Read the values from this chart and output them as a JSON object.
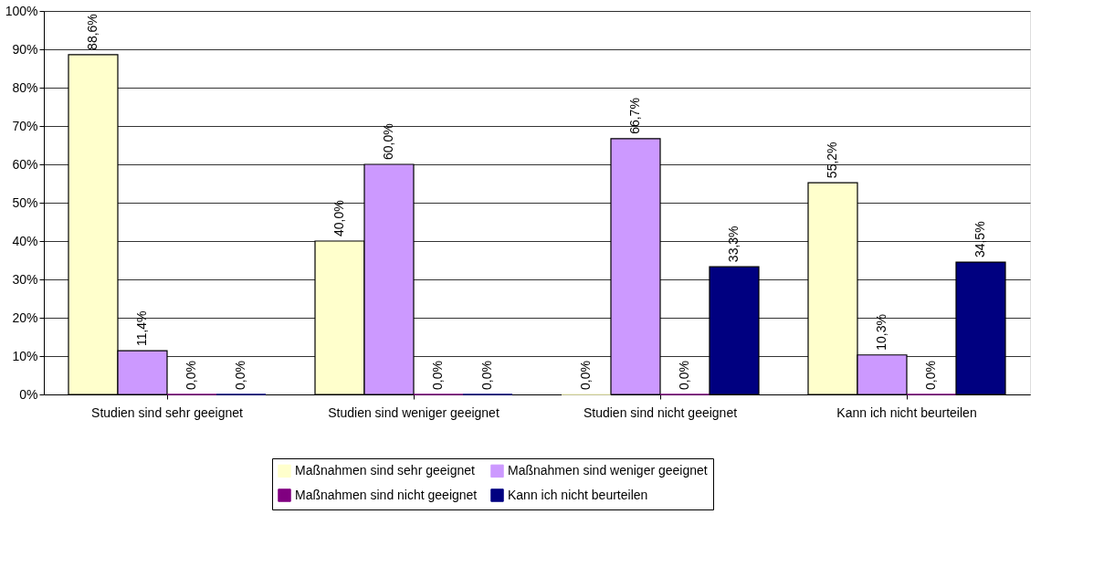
{
  "chart_data": {
    "type": "bar",
    "categories": [
      "Studien sind sehr geeignet",
      "Studien sind weniger geeignet",
      "Studien sind nicht geeignet",
      "Kann ich nicht beurteilen"
    ],
    "series": [
      {
        "name": "Maßnahmen sind sehr geeignet",
        "color": "#ffffcc",
        "values": [
          88.6,
          40.0,
          0.0,
          55.2
        ],
        "value_labels": [
          "88,6%",
          "40,0%",
          "0,0%",
          "55,2%"
        ]
      },
      {
        "name": "Maßnahmen sind weniger geeignet",
        "color": "#cc99ff",
        "values": [
          11.4,
          60.0,
          66.7,
          10.3
        ],
        "value_labels": [
          "11,4%",
          "60,0%",
          "66,7%",
          "10,3%"
        ]
      },
      {
        "name": "Maßnahmen sind nicht geeignet",
        "color": "#800080",
        "values": [
          0.0,
          0.0,
          0.0,
          0.0
        ],
        "value_labels": [
          "0,0%",
          "0,0%",
          "0,0%",
          "0,0%"
        ]
      },
      {
        "name": "Kann ich nicht beurteilen",
        "color": "#000080",
        "values": [
          0.0,
          0.0,
          33.3,
          34.5
        ],
        "value_labels": [
          "0,0%",
          "0,0%",
          "33,3%",
          "34,5%"
        ]
      }
    ],
    "ylim": [
      0,
      100
    ],
    "yticks": [
      {
        "value": 0,
        "label": "0%"
      },
      {
        "value": 10,
        "label": "10%"
      },
      {
        "value": 20,
        "label": "20%"
      },
      {
        "value": 30,
        "label": "30%"
      },
      {
        "value": 40,
        "label": "40%"
      },
      {
        "value": 50,
        "label": "50%"
      },
      {
        "value": 60,
        "label": "60%"
      },
      {
        "value": 70,
        "label": "70%"
      },
      {
        "value": 80,
        "label": "80%"
      },
      {
        "value": 90,
        "label": "90%"
      },
      {
        "value": 100,
        "label": "100%"
      }
    ],
    "grid": "y",
    "legend": "bottom"
  }
}
